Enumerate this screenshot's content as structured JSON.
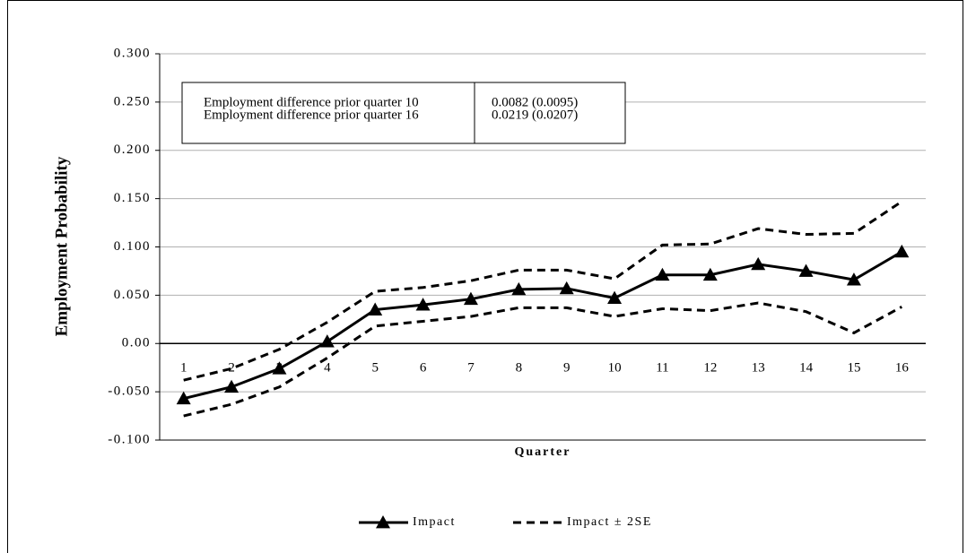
{
  "chart_data": {
    "type": "line",
    "y_label": "Employment Probability",
    "x_label": "Quarter",
    "categories": [
      "1",
      "2",
      "3",
      "4",
      "5",
      "6",
      "7",
      "8",
      "9",
      "10",
      "11",
      "12",
      "13",
      "14",
      "15",
      "16"
    ],
    "series": [
      {
        "name": "Impact",
        "color": "#000000",
        "style": "solid",
        "marker": "triangle",
        "values": [
          -0.057,
          -0.045,
          -0.026,
          0.002,
          0.035,
          0.04,
          0.046,
          0.056,
          0.057,
          0.047,
          0.071,
          0.071,
          0.082,
          0.075,
          0.066,
          0.095
        ]
      },
      {
        "name": "Impact ± 2SE",
        "color": "#000000",
        "style": "dashed",
        "upper": [
          -0.038,
          -0.026,
          -0.006,
          0.022,
          0.054,
          0.058,
          0.065,
          0.076,
          0.076,
          0.067,
          0.102,
          0.103,
          0.119,
          0.113,
          0.114,
          0.147
        ],
        "lower": [
          -0.075,
          -0.063,
          -0.045,
          -0.015,
          0.018,
          0.023,
          0.028,
          0.037,
          0.037,
          0.028,
          0.036,
          0.034,
          0.042,
          0.033,
          0.011,
          0.038
        ]
      }
    ],
    "ylim": [
      -0.1,
      0.3
    ],
    "yticks": [
      {
        "value": -0.1,
        "label": "-0.100"
      },
      {
        "value": -0.05,
        "label": "-0.050"
      },
      {
        "value": 0,
        "label": "0.00"
      },
      {
        "value": 0.05,
        "label": "0.050"
      },
      {
        "value": 0.1,
        "label": "0.100"
      },
      {
        "value": 0.15,
        "label": "0.150"
      },
      {
        "value": 0.2,
        "label": "0.200"
      },
      {
        "value": 0.25,
        "label": "0.250"
      },
      {
        "value": 0.3,
        "label": "0.300"
      }
    ],
    "grid": true,
    "legend": "bottom",
    "annotation_table": [
      [
        "Employment difference prior quarter 10",
        "0.0082 (0.0095)"
      ],
      [
        "Employment difference prior quarter 16",
        "0.0219 (0.0207)"
      ]
    ]
  }
}
